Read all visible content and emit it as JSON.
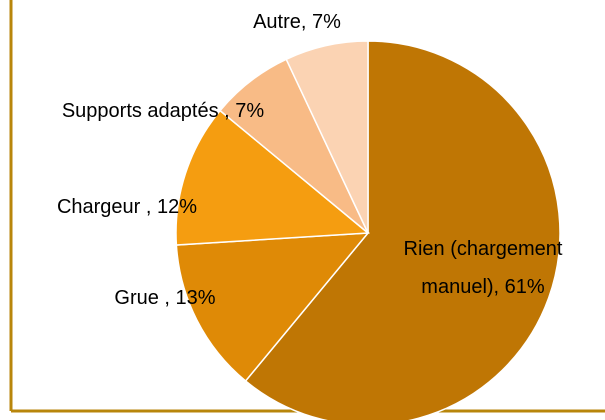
{
  "chart_data": {
    "type": "pie",
    "labels": [
      "Rien (chargement manuel), 61%",
      "Grue , 13%",
      "Chargeur , 12%",
      "Supports adaptés , 7%",
      "Autre, 7%"
    ],
    "values": [
      61,
      13,
      12,
      7,
      7
    ],
    "colors": [
      "#bf7604",
      "#df8a06",
      "#f59d10",
      "#f8bb86",
      "#fbd3b3"
    ]
  }
}
